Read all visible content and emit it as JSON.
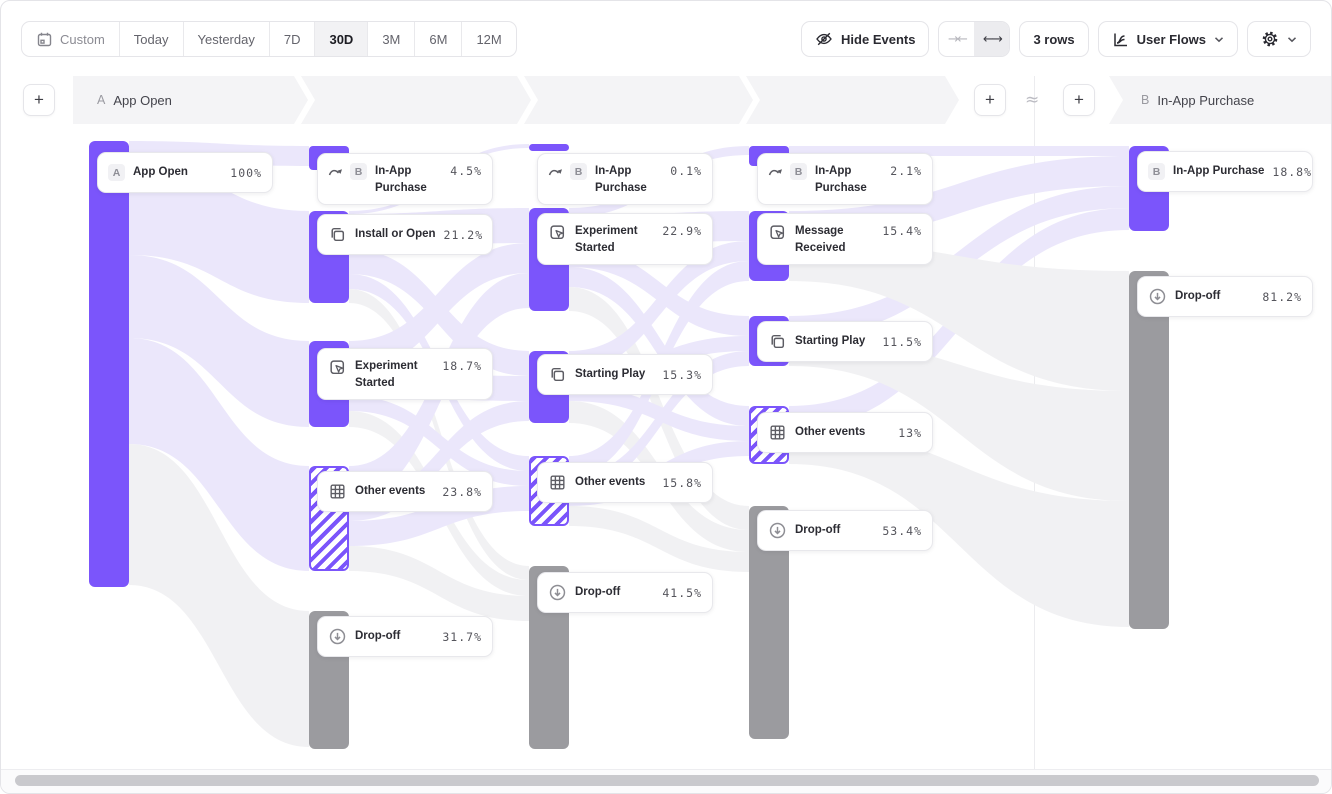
{
  "toolbar": {
    "date_ranges": [
      {
        "label": "Custom",
        "icon": "calendar-icon",
        "active": false,
        "muted": true
      },
      {
        "label": "Today",
        "active": false
      },
      {
        "label": "Yesterday",
        "active": false
      },
      {
        "label": "7D",
        "active": false
      },
      {
        "label": "30D",
        "active": true
      },
      {
        "label": "3M",
        "active": false
      },
      {
        "label": "6M",
        "active": false
      },
      {
        "label": "12M",
        "active": false
      }
    ],
    "hide_events_label": "Hide Events",
    "collapse_icon": "collapse-arrows-icon",
    "expand_icon": "expand-arrows-icon",
    "rows_label": "3 rows",
    "view_selector_label": "User Flows"
  },
  "header": {
    "start_event": {
      "badge": "A",
      "label": "App Open"
    },
    "end_event": {
      "badge": "B",
      "label": "In-App Purchase"
    },
    "gap_symbol": "≈"
  },
  "flow": {
    "columns": [
      {
        "name": "start",
        "nodes": [
          {
            "label": "App Open",
            "value": "100%",
            "badge": "A",
            "kind": "event"
          }
        ]
      },
      {
        "name": "step-1",
        "nodes": [
          {
            "label": "In-App Purchase",
            "value": "4.5%",
            "badge": "B",
            "icon": "flow-arrow-icon",
            "kind": "conversion"
          },
          {
            "label": "Install or Open",
            "value": "21.2%",
            "icon": "copy-icon",
            "kind": "event"
          },
          {
            "label": "Experiment Started",
            "value": "18.7%",
            "icon": "interact-icon",
            "kind": "event"
          },
          {
            "label": "Other events",
            "value": "23.8%",
            "icon": "grid-icon",
            "kind": "other"
          },
          {
            "label": "Drop-off",
            "value": "31.7%",
            "icon": "dropoff-icon",
            "kind": "dropoff"
          }
        ]
      },
      {
        "name": "step-2",
        "nodes": [
          {
            "label": "In-App Purchase",
            "value": "0.1%",
            "badge": "B",
            "icon": "flow-arrow-icon",
            "kind": "conversion"
          },
          {
            "label": "Experiment Started",
            "value": "22.9%",
            "icon": "interact-icon",
            "kind": "event"
          },
          {
            "label": "Starting Play",
            "value": "15.3%",
            "icon": "copy-icon",
            "kind": "event"
          },
          {
            "label": "Other events",
            "value": "15.8%",
            "icon": "grid-icon",
            "kind": "other"
          },
          {
            "label": "Drop-off",
            "value": "41.5%",
            "icon": "dropoff-icon",
            "kind": "dropoff"
          }
        ]
      },
      {
        "name": "step-3",
        "nodes": [
          {
            "label": "In-App Purchase",
            "value": "2.1%",
            "badge": "B",
            "icon": "flow-arrow-icon",
            "kind": "conversion"
          },
          {
            "label": "Message Received",
            "value": "15.4%",
            "icon": "interact-icon",
            "kind": "event"
          },
          {
            "label": "Starting Play",
            "value": "11.5%",
            "icon": "copy-icon",
            "kind": "event"
          },
          {
            "label": "Other events",
            "value": "13%",
            "icon": "grid-icon",
            "kind": "other"
          },
          {
            "label": "Drop-off",
            "value": "53.4%",
            "icon": "dropoff-icon",
            "kind": "dropoff"
          }
        ]
      },
      {
        "name": "end",
        "nodes": [
          {
            "label": "In-App Purchase",
            "value": "18.8%",
            "badge": "B",
            "kind": "event"
          },
          {
            "label": "Drop-off",
            "value": "81.2%",
            "icon": "dropoff-icon",
            "kind": "dropoff"
          }
        ]
      }
    ]
  },
  "colors": {
    "accent_purple": "#7b55fb",
    "ribbon_purple": "#ebe7fb",
    "dropoff_gray": "#9b9b9f",
    "ribbon_gray": "#f1f1f3"
  }
}
